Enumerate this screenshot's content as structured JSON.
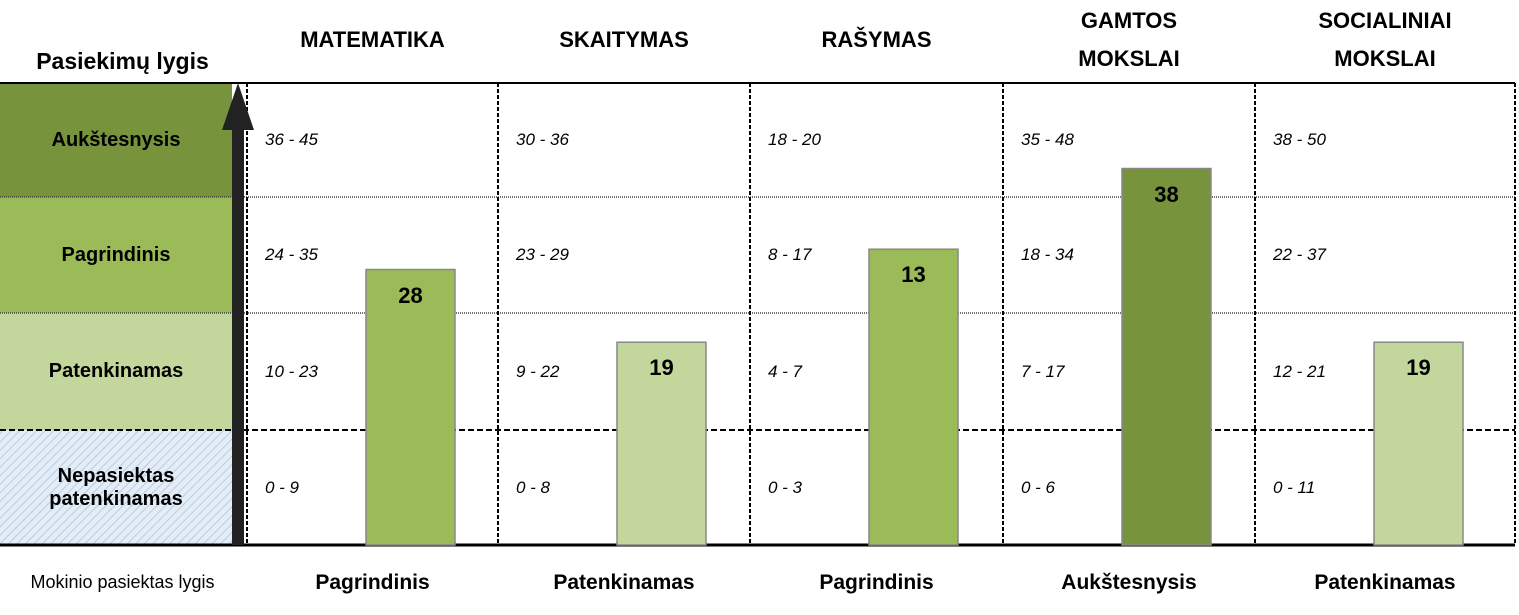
{
  "header": {
    "levels_title": "Pasiekimų lygis",
    "student_level_title": "Mokinio pasiektas lygis"
  },
  "levels": [
    {
      "name": "Aukštesnysis",
      "color": "#77933c"
    },
    {
      "name": "Pagrindinis",
      "color": "#9bbb59"
    },
    {
      "name": "Patenkinamas",
      "color": "#c3d69b"
    },
    {
      "name": "Nepasiektas patenkinamas",
      "color": "#dbe5f1"
    }
  ],
  "subjects": [
    {
      "name": "MATEMATIKA",
      "ranges": [
        {
          "low": 36,
          "high": 45,
          "label": "36 - 45"
        },
        {
          "low": 24,
          "high": 35,
          "label": "24 - 35"
        },
        {
          "low": 10,
          "high": 23,
          "label": "10 - 23"
        },
        {
          "low": 0,
          "high": 9,
          "label": "0 - 9"
        }
      ],
      "score": 28,
      "achieved": "Pagrindinis"
    },
    {
      "name": "SKAITYMAS",
      "ranges": [
        {
          "low": 30,
          "high": 36,
          "label": "30 - 36"
        },
        {
          "low": 23,
          "high": 29,
          "label": "23 - 29"
        },
        {
          "low": 9,
          "high": 22,
          "label": "9 - 22"
        },
        {
          "low": 0,
          "high": 8,
          "label": "0 - 8"
        }
      ],
      "score": 19,
      "achieved": "Patenkinamas"
    },
    {
      "name": "RAŠYMAS",
      "ranges": [
        {
          "low": 18,
          "high": 20,
          "label": "18 - 20"
        },
        {
          "low": 8,
          "high": 17,
          "label": "8 - 17"
        },
        {
          "low": 4,
          "high": 7,
          "label": "4 - 7"
        },
        {
          "low": 0,
          "high": 3,
          "label": "0 - 3"
        }
      ],
      "score": 13,
      "achieved": "Pagrindinis"
    },
    {
      "name": "GAMTOS MOKSLAI",
      "ranges": [
        {
          "low": 35,
          "high": 48,
          "label": "35 - 48"
        },
        {
          "low": 18,
          "high": 34,
          "label": "18 - 34"
        },
        {
          "low": 7,
          "high": 17,
          "label": "7 - 17"
        },
        {
          "low": 0,
          "high": 6,
          "label": "0 - 6"
        }
      ],
      "score": 38,
      "achieved": "Aukštesnysis"
    },
    {
      "name": "SOCIALINIAI MOKSLAI",
      "ranges": [
        {
          "low": 38,
          "high": 50,
          "label": "38 - 50"
        },
        {
          "low": 22,
          "high": 37,
          "label": "22 - 37"
        },
        {
          "low": 12,
          "high": 21,
          "label": "12 - 21"
        },
        {
          "low": 0,
          "high": 11,
          "label": "0 - 11"
        }
      ],
      "score": 19,
      "achieved": "Patenkinamas"
    }
  ]
}
